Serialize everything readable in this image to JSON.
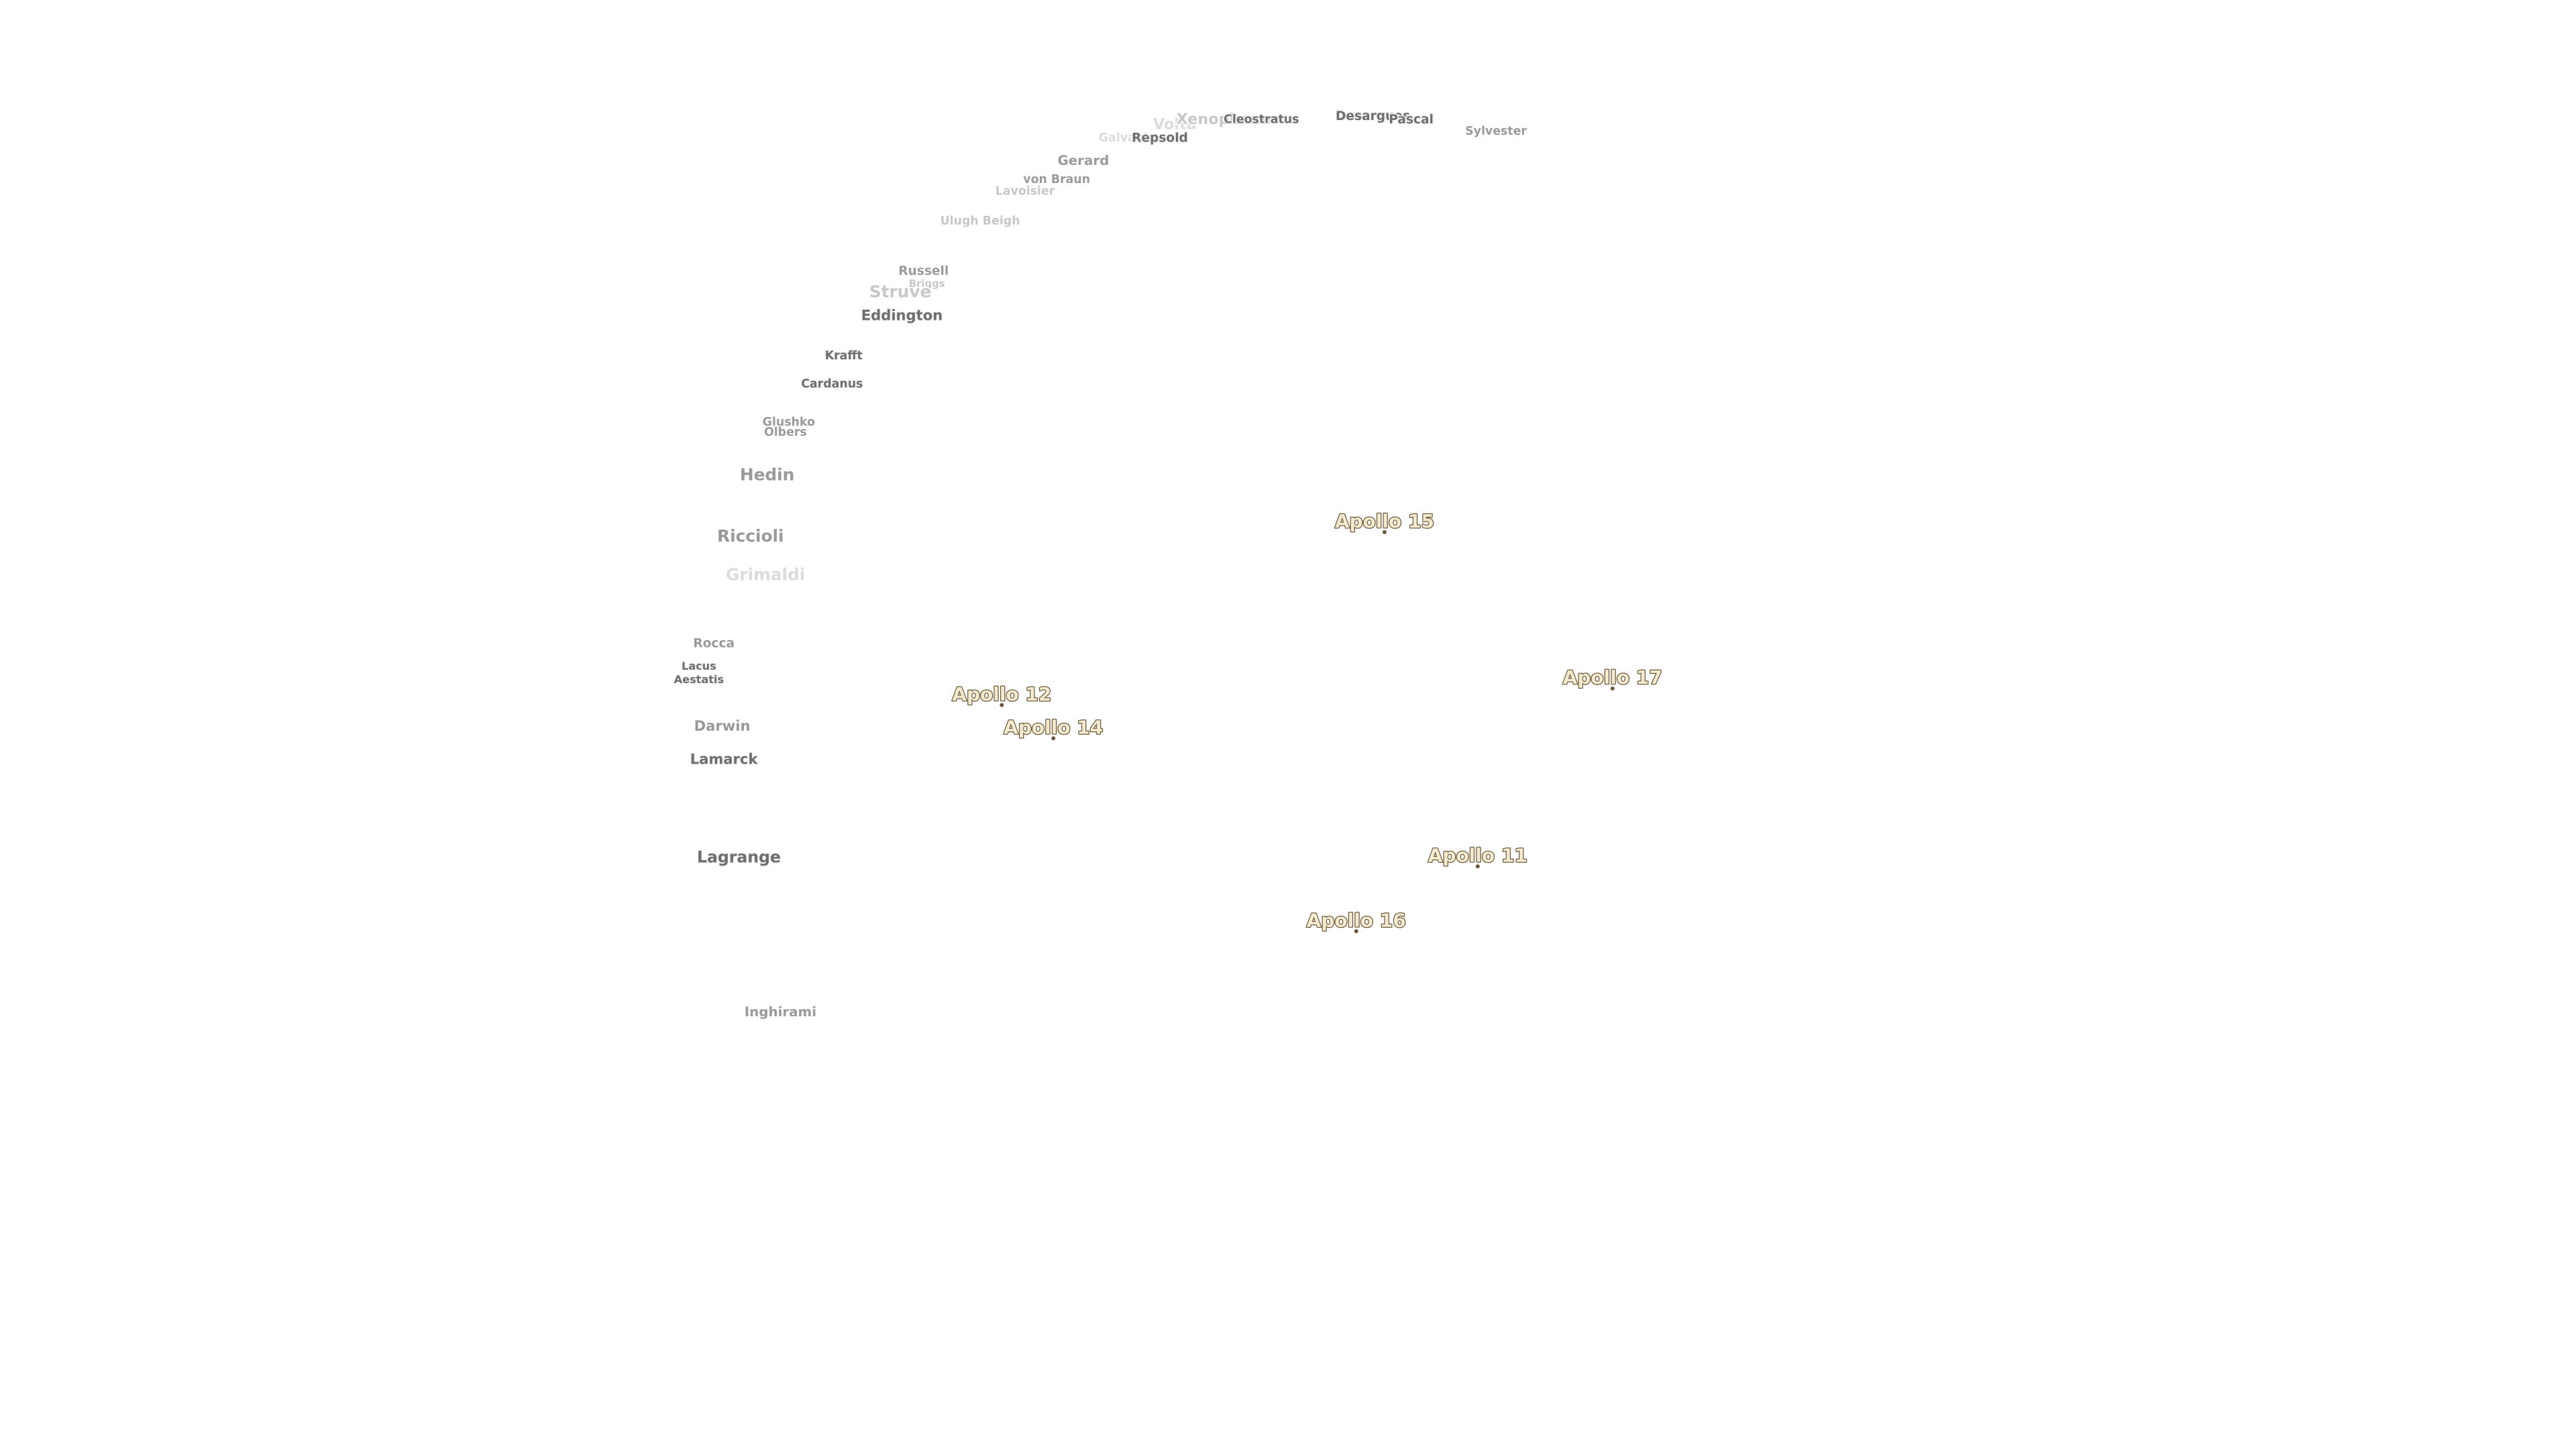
{
  "craters": [
    {
      "label": "Volta"
    },
    {
      "label": "Xenophanes"
    },
    {
      "label": "Cleostratus"
    },
    {
      "label": "Desargues"
    },
    {
      "label": "Pascal"
    },
    {
      "label": "Sylvester"
    },
    {
      "label": "Galvani"
    },
    {
      "label": "Repsold"
    },
    {
      "label": "Gerard"
    },
    {
      "label": "von Braun"
    },
    {
      "label": "Lavoisier"
    },
    {
      "label": "Ulugh Beigh"
    },
    {
      "label": "Russell"
    },
    {
      "label": "Briggs"
    },
    {
      "label": "Struve"
    },
    {
      "label": "Eddington"
    },
    {
      "label": "Krafft"
    },
    {
      "label": "Cardanus"
    },
    {
      "label": "Glushko"
    },
    {
      "label": "Olbers"
    },
    {
      "label": "Hedin"
    },
    {
      "label": "Riccioli"
    },
    {
      "label": "Grimaldi"
    },
    {
      "label": "Rocca"
    },
    {
      "label": "Lacus"
    },
    {
      "label": "Aestatis"
    },
    {
      "label": "Darwin"
    },
    {
      "label": "Lamarck"
    },
    {
      "label": "Lagrange"
    },
    {
      "label": "Inghirami"
    }
  ],
  "landing_sites": [
    {
      "label": "Apollo 15"
    },
    {
      "label": "Apollo 12"
    },
    {
      "label": "Apollo 14"
    },
    {
      "label": "Apollo 17"
    },
    {
      "label": "Apollo 11"
    },
    {
      "label": "Apollo 16"
    }
  ]
}
